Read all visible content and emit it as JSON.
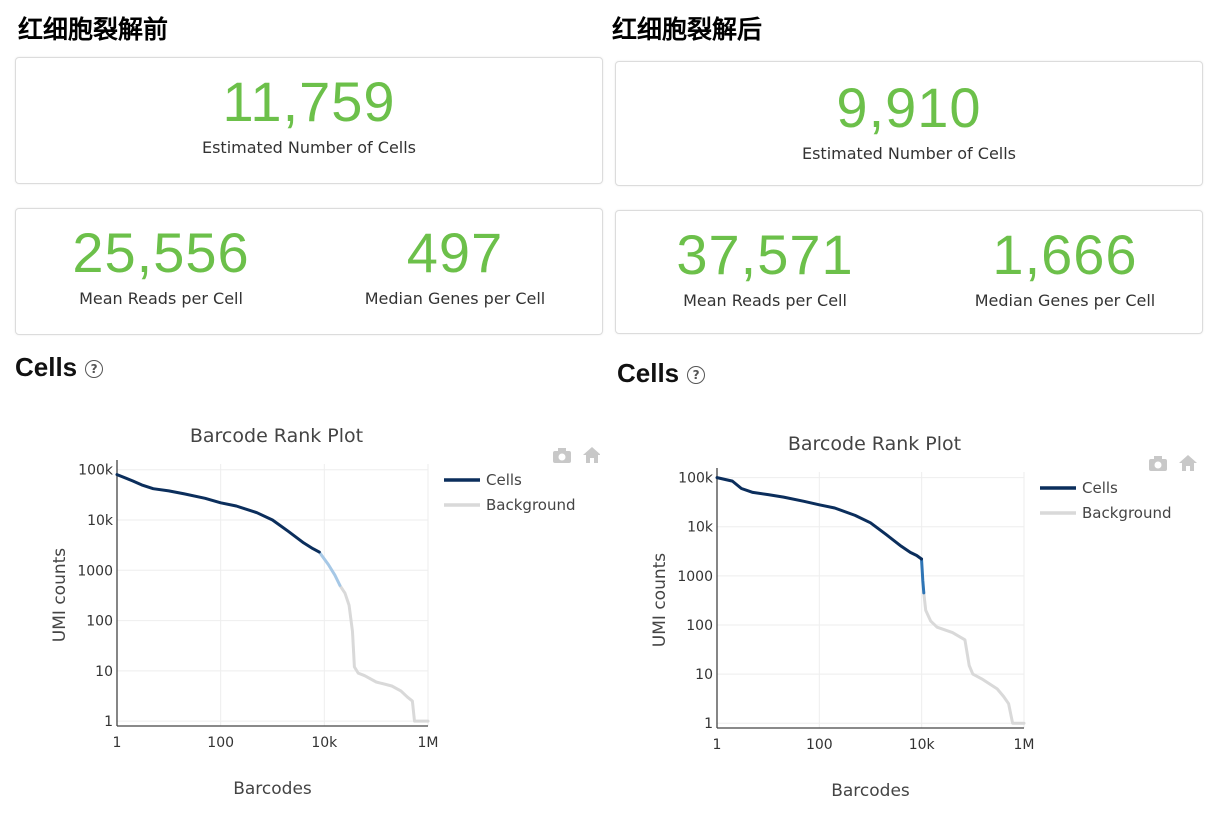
{
  "panels": [
    {
      "title": "红细胞裂解前",
      "cells_count": "11,759",
      "cells_caption": "Estimated Number of Cells",
      "mean_reads": "25,556",
      "mean_reads_caption": "Mean Reads per Cell",
      "median_genes": "497",
      "median_genes_caption": "Median Genes per Cell",
      "section": "Cells",
      "help_glyph": "?"
    },
    {
      "title": "红细胞裂解后",
      "cells_count": "9,910",
      "cells_caption": "Estimated Number of Cells",
      "mean_reads": "37,571",
      "mean_reads_caption": "Mean Reads per Cell",
      "median_genes": "1,666",
      "median_genes_caption": "Median Genes per Cell",
      "section": "Cells",
      "help_glyph": "?"
    }
  ],
  "icons": {
    "camera": "camera-icon",
    "home": "home-icon"
  },
  "colors": {
    "metric_green": "#6cc04a",
    "cells_line": "#0b2e5c",
    "mixed_line": "#5b9bd5",
    "background_line": "#d9d9d9"
  },
  "chart_data": [
    {
      "type": "line",
      "title": "Barcode Rank Plot",
      "xlabel": "Barcodes",
      "ylabel": "UMI counts",
      "x_scale": "log",
      "y_scale": "log",
      "xlim": [
        1,
        1000000
      ],
      "ylim": [
        0.8,
        130000
      ],
      "x_ticks": [
        {
          "v": 1,
          "label": "1"
        },
        {
          "v": 100,
          "label": "100"
        },
        {
          "v": 10000,
          "label": "10k"
        },
        {
          "v": 1000000,
          "label": "1M"
        }
      ],
      "y_ticks": [
        {
          "v": 1,
          "label": "1"
        },
        {
          "v": 10,
          "label": "10"
        },
        {
          "v": 100,
          "label": "100"
        },
        {
          "v": 1000,
          "label": "1000"
        },
        {
          "v": 10000,
          "label": "10k"
        },
        {
          "v": 100000,
          "label": "100k"
        }
      ],
      "legend": [
        {
          "name": "Cells",
          "color": "#0b2e5c"
        },
        {
          "name": "Background",
          "color": "#d9d9d9"
        }
      ],
      "legend_position": "top-right",
      "series": [
        {
          "name": "Cells",
          "color": "#0b2e5c",
          "x": [
            1,
            2,
            3,
            5,
            10,
            20,
            50,
            100,
            200,
            500,
            1000,
            2000,
            4000,
            6000,
            8000
          ],
          "y": [
            80000,
            60000,
            50000,
            42000,
            38000,
            33000,
            27000,
            22000,
            19000,
            14000,
            10000,
            6000,
            3500,
            2700,
            2300
          ]
        },
        {
          "name": "",
          "color": "#a6c8e6",
          "x": [
            8000,
            12000,
            16000,
            20000
          ],
          "y": [
            2300,
            1300,
            800,
            500
          ]
        },
        {
          "name": "Background",
          "color": "#d9d9d9",
          "x": [
            20000,
            25000,
            30000,
            35000,
            38000,
            45000,
            60000,
            100000,
            200000,
            300000,
            400000,
            500000,
            550000,
            700000,
            1000000
          ],
          "y": [
            500,
            350,
            200,
            60,
            12,
            9,
            8,
            6,
            5,
            4,
            3,
            2.5,
            1,
            1,
            1
          ]
        }
      ]
    },
    {
      "type": "line",
      "title": "Barcode Rank Plot",
      "xlabel": "Barcodes",
      "ylabel": "UMI counts",
      "x_scale": "log",
      "y_scale": "log",
      "xlim": [
        1,
        1000000
      ],
      "ylim": [
        0.8,
        130000
      ],
      "x_ticks": [
        {
          "v": 1,
          "label": "1"
        },
        {
          "v": 100,
          "label": "100"
        },
        {
          "v": 10000,
          "label": "10k"
        },
        {
          "v": 1000000,
          "label": "1M"
        }
      ],
      "y_ticks": [
        {
          "v": 1,
          "label": "1"
        },
        {
          "v": 10,
          "label": "10"
        },
        {
          "v": 100,
          "label": "100"
        },
        {
          "v": 1000,
          "label": "1000"
        },
        {
          "v": 10000,
          "label": "10k"
        },
        {
          "v": 100000,
          "label": "100k"
        }
      ],
      "legend": [
        {
          "name": "Cells",
          "color": "#0b2e5c"
        },
        {
          "name": "Background",
          "color": "#d9d9d9"
        }
      ],
      "legend_position": "top-right",
      "series": [
        {
          "name": "Cells",
          "color": "#0b2e5c",
          "x": [
            1,
            2,
            3,
            5,
            10,
            20,
            50,
            100,
            200,
            500,
            1000,
            2000,
            4000,
            6000,
            8000,
            9910
          ],
          "y": [
            100000,
            85000,
            60000,
            50000,
            45000,
            40000,
            33000,
            28000,
            24000,
            17000,
            12000,
            7000,
            4000,
            3000,
            2600,
            2200
          ]
        },
        {
          "name": "",
          "color": "#2f75b5",
          "x": [
            9910,
            10200,
            10500,
            11000
          ],
          "y": [
            2200,
            1400,
            800,
            450
          ]
        },
        {
          "name": "Background",
          "color": "#d9d9d9",
          "x": [
            11000,
            12000,
            15000,
            20000,
            40000,
            70000,
            85000,
            100000,
            150000,
            300000,
            400000,
            500000,
            600000,
            1000000
          ],
          "y": [
            450,
            200,
            120,
            90,
            70,
            50,
            15,
            10,
            8,
            5,
            3.5,
            2.5,
            1,
            1
          ]
        }
      ]
    }
  ]
}
